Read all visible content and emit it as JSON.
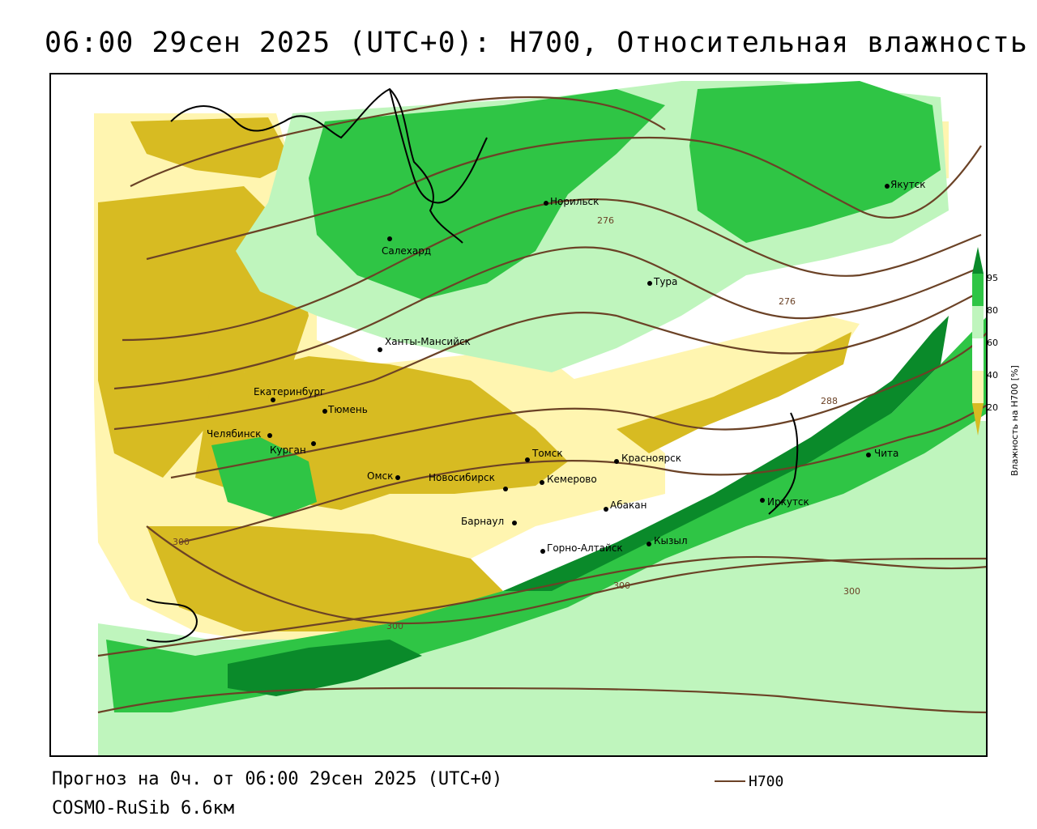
{
  "title": "06:00 29сен 2025 (UTC+0): H700, Относительная влажность",
  "footer": {
    "forecast": "Прогноз на 0ч. от 06:00 29сен 2025 (UTC+0)",
    "model": "COSMO-RuSib 6.6км"
  },
  "legend": {
    "series": "H700"
  },
  "colorbar": {
    "label": "Влажность на H700 [%]",
    "ticks": [
      "95",
      "80",
      "60",
      "40",
      "20"
    ],
    "colors": {
      "95plus": "#0a8a2a",
      "80_95": "#2fc545",
      "60_80": "#bff5bd",
      "40_60": "#ffffff",
      "20_40": "#fff5b0",
      "below20": "#d7bb22"
    }
  },
  "cities": [
    "Норильск",
    "Якутск",
    "Салехард",
    "Тура",
    "Ханты-Мансийск",
    "Екатеринбург",
    "Тюмень",
    "Челябинск",
    "Курган",
    "Омск",
    "Новосибирск",
    "Томск",
    "Красноярск",
    "Кемерово",
    "Абакан",
    "Иркутск",
    "Чита",
    "Барнаул",
    "Горно-Алтайск",
    "Кызыл"
  ],
  "contour_labels": [
    "276",
    "276",
    "288",
    "300",
    "300",
    "300",
    "300"
  ]
}
